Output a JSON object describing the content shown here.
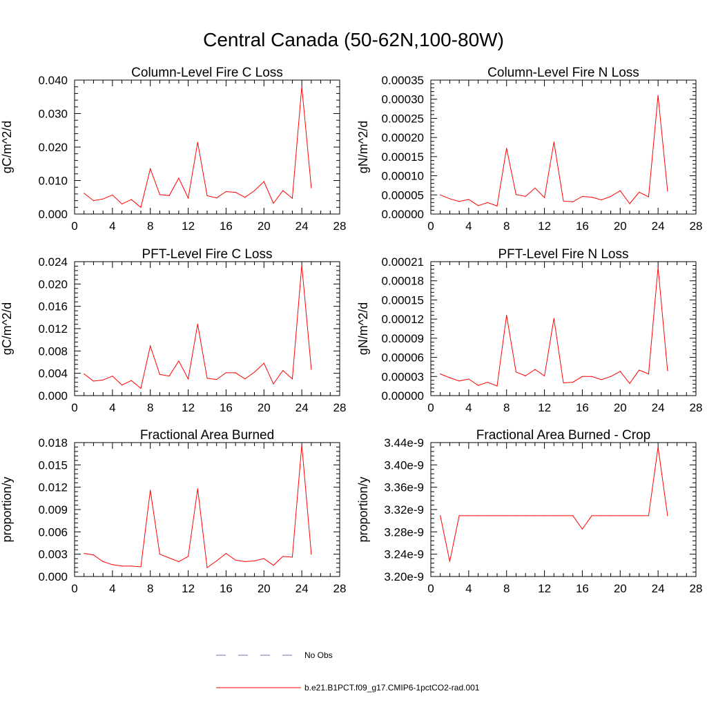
{
  "title": "Central Canada (50-62N,100-80W)",
  "colors": {
    "series": "#ff0000",
    "obs": "#6a6aa8",
    "axis": "#000000"
  },
  "legend": {
    "obs_label": "No Obs",
    "model_label": "b.e21.B1PCT.f09_g17.CMIP6-1pctCO2-rad.001"
  },
  "chart_data": [
    {
      "type": "line",
      "title": "Column-Level Fire C Loss",
      "ylabel": "gC/m^2/d",
      "xlim": [
        0,
        28
      ],
      "xticks": [
        "0",
        "4",
        "8",
        "12",
        "16",
        "20",
        "24",
        "28"
      ],
      "ylim": [
        0,
        0.04
      ],
      "yticks": [
        "0.000",
        "0.010",
        "0.020",
        "0.030",
        "0.040"
      ],
      "series": [
        {
          "x": [
            1,
            2,
            3,
            4,
            5,
            6,
            7,
            8,
            9,
            10,
            11,
            12,
            13,
            14,
            15,
            16,
            17,
            18,
            19,
            20,
            21,
            22,
            23,
            24,
            25
          ],
          "values": [
            0.0062,
            0.004,
            0.0045,
            0.0057,
            0.003,
            0.0043,
            0.002,
            0.0135,
            0.0058,
            0.0055,
            0.0107,
            0.0048,
            0.0214,
            0.0055,
            0.0048,
            0.0067,
            0.0065,
            0.005,
            0.007,
            0.0097,
            0.0032,
            0.007,
            0.0047,
            0.0381,
            0.0078
          ]
        }
      ]
    },
    {
      "type": "line",
      "title": "Column-Level Fire N Loss",
      "ylabel": "gN/m^2/d",
      "xlim": [
        0,
        28
      ],
      "xticks": [
        "0",
        "4",
        "8",
        "12",
        "16",
        "20",
        "24",
        "28"
      ],
      "ylim": [
        0,
        0.00035
      ],
      "yticks": [
        "0.00000",
        "0.00005",
        "0.00010",
        "0.00015",
        "0.00020",
        "0.00025",
        "0.00030",
        "0.00035"
      ],
      "series": [
        {
          "x": [
            1,
            2,
            3,
            4,
            5,
            6,
            7,
            8,
            9,
            10,
            11,
            12,
            13,
            14,
            15,
            16,
            17,
            18,
            19,
            20,
            21,
            22,
            23,
            24,
            25
          ],
          "values": [
            5e-05,
            4e-05,
            3.3e-05,
            3.8e-05,
            2.2e-05,
            3e-05,
            2.1e-05,
            0.000172,
            5.1e-05,
            4.6e-05,
            6.8e-05,
            4.3e-05,
            0.000188,
            3.4e-05,
            3.2e-05,
            4.6e-05,
            4.4e-05,
            3.7e-05,
            4.6e-05,
            6.1e-05,
            2.7e-05,
            5.7e-05,
            4.5e-05,
            0.00031,
            6e-05
          ]
        }
      ]
    },
    {
      "type": "line",
      "title": "PFT-Level Fire C Loss",
      "ylabel": "gC/m^2/d",
      "xlim": [
        0,
        28
      ],
      "xticks": [
        "0",
        "4",
        "8",
        "12",
        "16",
        "20",
        "24",
        "28"
      ],
      "ylim": [
        0,
        0.024
      ],
      "yticks": [
        "0.000",
        "0.004",
        "0.008",
        "0.012",
        "0.016",
        "0.020",
        "0.024"
      ],
      "series": [
        {
          "x": [
            1,
            2,
            3,
            4,
            5,
            6,
            7,
            8,
            9,
            10,
            11,
            12,
            13,
            14,
            15,
            16,
            17,
            18,
            19,
            20,
            21,
            22,
            23,
            24,
            25
          ],
          "values": [
            0.0039,
            0.0026,
            0.0028,
            0.0035,
            0.0019,
            0.0027,
            0.0013,
            0.0089,
            0.0038,
            0.0035,
            0.0062,
            0.003,
            0.0128,
            0.0031,
            0.0029,
            0.0041,
            0.0041,
            0.003,
            0.0042,
            0.0058,
            0.0021,
            0.0045,
            0.003,
            0.0234,
            0.0047
          ]
        }
      ]
    },
    {
      "type": "line",
      "title": "PFT-Level Fire N Loss",
      "ylabel": "gN/m^2/d",
      "xlim": [
        0,
        28
      ],
      "xticks": [
        "0",
        "4",
        "8",
        "12",
        "16",
        "20",
        "24",
        "28"
      ],
      "ylim": [
        0,
        0.00021
      ],
      "yticks": [
        "0.00000",
        "0.00003",
        "0.00006",
        "0.00009",
        "0.00012",
        "0.00015",
        "0.00018",
        "0.00021"
      ],
      "series": [
        {
          "x": [
            1,
            2,
            3,
            4,
            5,
            6,
            7,
            8,
            9,
            10,
            11,
            12,
            13,
            14,
            15,
            16,
            17,
            18,
            19,
            20,
            21,
            22,
            23,
            24,
            25
          ],
          "values": [
            3.4e-05,
            2.8e-05,
            2.3e-05,
            2.6e-05,
            1.6e-05,
            2.1e-05,
            1.5e-05,
            0.000126,
            3.7e-05,
            3.1e-05,
            4.1e-05,
            3.1e-05,
            0.000121,
            2e-05,
            2.1e-05,
            3e-05,
            3e-05,
            2.5e-05,
            3e-05,
            3.8e-05,
            1.9e-05,
            4e-05,
            3.4e-05,
            0.000201,
            3.9e-05
          ]
        }
      ]
    },
    {
      "type": "line",
      "title": "Fractional Area Burned",
      "ylabel": "proportion/y",
      "xlim": [
        0,
        28
      ],
      "xticks": [
        "0",
        "4",
        "8",
        "12",
        "16",
        "20",
        "24",
        "28"
      ],
      "ylim": [
        0,
        0.018
      ],
      "yticks": [
        "0.000",
        "0.003",
        "0.006",
        "0.009",
        "0.012",
        "0.015",
        "0.018"
      ],
      "series": [
        {
          "x": [
            1,
            2,
            3,
            4,
            5,
            6,
            7,
            8,
            9,
            10,
            11,
            12,
            13,
            14,
            15,
            16,
            17,
            18,
            19,
            20,
            21,
            22,
            23,
            24,
            25
          ],
          "values": [
            0.0031,
            0.0029,
            0.002,
            0.0016,
            0.0014,
            0.0014,
            0.0013,
            0.0116,
            0.003,
            0.0025,
            0.002,
            0.0027,
            0.0118,
            0.0012,
            0.0021,
            0.0031,
            0.0022,
            0.002,
            0.0021,
            0.0024,
            0.0015,
            0.0027,
            0.0026,
            0.0177,
            0.003
          ]
        }
      ]
    },
    {
      "type": "line",
      "title": "Fractional Area Burned - Crop",
      "ylabel": "proportion/y",
      "xlim": [
        0,
        28
      ],
      "xticks": [
        "0",
        "4",
        "8",
        "12",
        "16",
        "20",
        "24",
        "28"
      ],
      "ylim": [
        3.2e-09,
        3.44e-09
      ],
      "yticks": [
        "3.20e-9",
        "3.24e-9",
        "3.28e-9",
        "3.32e-9",
        "3.36e-9",
        "3.40e-9",
        "3.44e-9"
      ],
      "series": [
        {
          "x": [
            1,
            2,
            3,
            4,
            5,
            6,
            7,
            8,
            9,
            10,
            11,
            12,
            13,
            14,
            15,
            16,
            17,
            18,
            19,
            20,
            21,
            22,
            23,
            24,
            25
          ],
          "values": [
            3.309e-09,
            3.227e-09,
            3.309e-09,
            3.309e-09,
            3.309e-09,
            3.309e-09,
            3.309e-09,
            3.309e-09,
            3.309e-09,
            3.309e-09,
            3.309e-09,
            3.309e-09,
            3.309e-09,
            3.309e-09,
            3.309e-09,
            3.285e-09,
            3.309e-09,
            3.309e-09,
            3.309e-09,
            3.309e-09,
            3.309e-09,
            3.309e-09,
            3.309e-09,
            3.432e-09,
            3.309e-09
          ]
        }
      ]
    }
  ]
}
